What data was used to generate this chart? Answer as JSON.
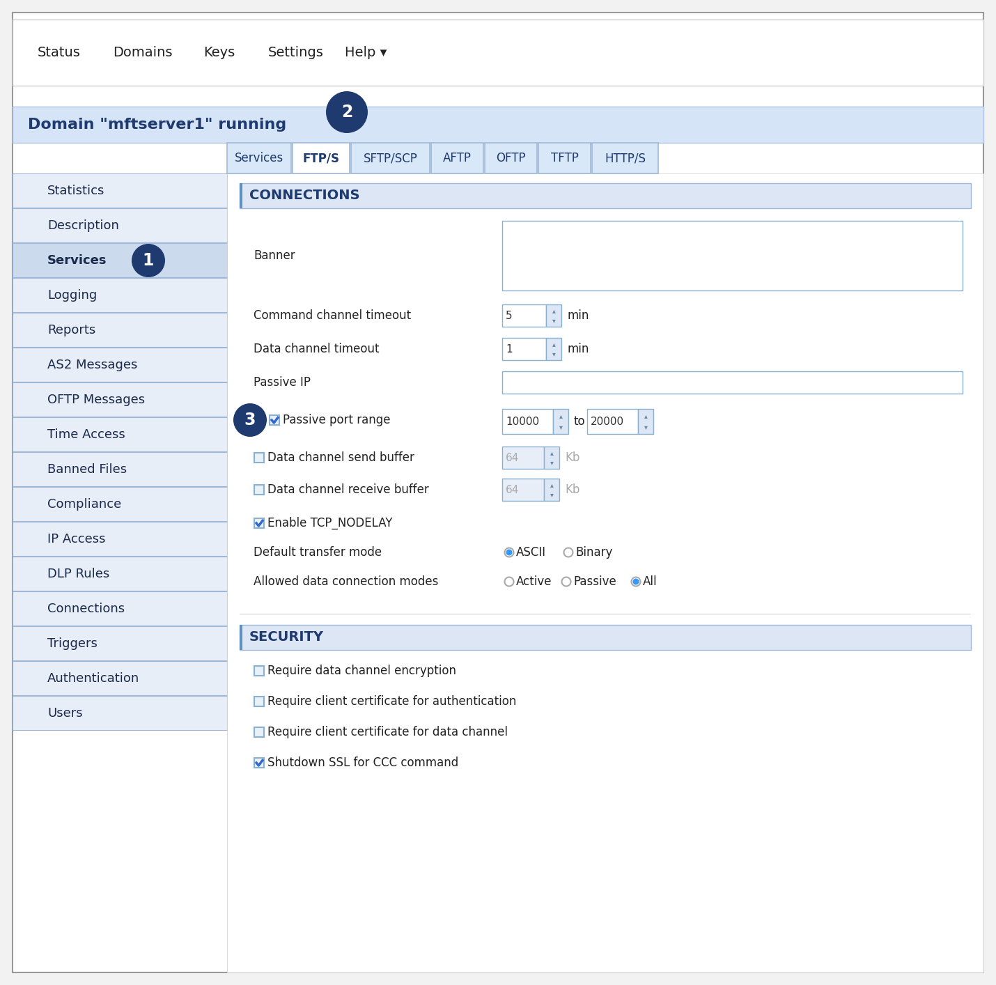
{
  "bg_color": "#f2f2f2",
  "white": "#ffffff",
  "light_blue_bg": "#dce6f5",
  "header_blue": "#d6e4f7",
  "dark_blue": "#1e3a6e",
  "border_blue": "#a0b8d8",
  "left_nav_bg": "#e8eef8",
  "left_nav_selected": "#ccdaee",
  "tab_inactive_bg": "#d8e8f8",
  "tab_active_bg": "#ffffff",
  "spinbox_bg": "#f0f5fb",
  "input_border": "#8ab0d0",
  "top_nav_items": [
    "Status",
    "Domains",
    "Keys",
    "Settings",
    "Help ▾"
  ],
  "tabs": [
    "Services",
    "FTP/S",
    "SFTP/SCP",
    "AFTP",
    "OFTP",
    "TFTP",
    "HTTP/S"
  ],
  "active_tab": 1,
  "left_nav_items": [
    "Statistics",
    "Description",
    "Services",
    "Logging",
    "Reports",
    "AS2 Messages",
    "OFTP Messages",
    "Time Access",
    "Banned Files",
    "Compliance",
    "IP Access",
    "DLP Rules",
    "Connections",
    "Triggers",
    "Authentication",
    "Users"
  ],
  "domain_text": "Domain \"mftserver1\" running",
  "connections_label": "CONNECTIONS",
  "security_label": "SECURITY",
  "form_rows": [
    {
      "type": "banner",
      "label": "Banner"
    },
    {
      "type": "spinbox",
      "label": "Command channel timeout",
      "value": "5",
      "unit": "min"
    },
    {
      "type": "spinbox",
      "label": "Data channel timeout",
      "value": "1",
      "unit": "min"
    },
    {
      "type": "textinput",
      "label": "Passive IP"
    },
    {
      "type": "range_check",
      "label": "Passive port range",
      "checked": true,
      "v1": "10000",
      "v2": "20000"
    },
    {
      "type": "spinbox_check",
      "label": "Data channel send buffer",
      "checked": false,
      "value": "64",
      "unit": "Kb"
    },
    {
      "type": "spinbox_check",
      "label": "Data channel receive buffer",
      "checked": false,
      "value": "64",
      "unit": "Kb"
    },
    {
      "type": "checkbox_only",
      "label": "Enable TCP_NODELAY",
      "checked": true
    },
    {
      "type": "radio_row",
      "label": "Default transfer mode",
      "options": [
        "ASCII",
        "Binary"
      ],
      "selected": 0
    },
    {
      "type": "radio_row",
      "label": "Allowed data connection modes",
      "options": [
        "Active",
        "Passive",
        "All"
      ],
      "selected": 2
    }
  ],
  "security_rows": [
    {
      "label": "Require data channel encryption",
      "checked": false
    },
    {
      "label": "Require client certificate for authentication",
      "checked": false
    },
    {
      "label": "Require client certificate for data channel",
      "checked": false
    },
    {
      "label": "Shutdown SSL for CCC command",
      "checked": true
    }
  ],
  "badge1_nav_index": 2,
  "badge_color": "#1e3a6e"
}
